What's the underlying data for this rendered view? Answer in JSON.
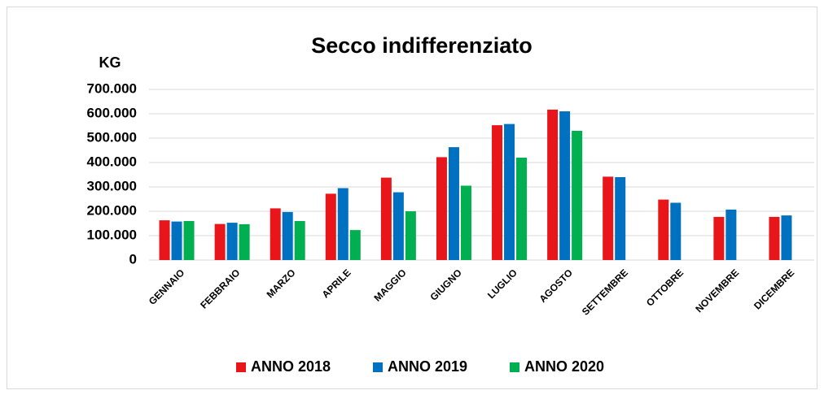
{
  "chart_data": {
    "type": "bar",
    "title": "Secco indifferenziato",
    "y_label": "KG",
    "categories": [
      "GENNAIO",
      "FEBBRAIO",
      "MARZO",
      "APRILE",
      "MAGGIO",
      "GIUGNO",
      "LUGLIO",
      "AGOSTO",
      "SETTEMBRE",
      "OTTOBRE",
      "NOVEMBRE",
      "DICEMBRE"
    ],
    "series": [
      {
        "name": "ANNO 2018",
        "color": "#e8161a",
        "values": [
          163000,
          148000,
          212000,
          272000,
          338000,
          422000,
          553000,
          617000,
          342000,
          248000,
          177000,
          177000
        ]
      },
      {
        "name": "ANNO 2019",
        "color": "#0070c0",
        "values": [
          158000,
          153000,
          197000,
          295000,
          278000,
          463000,
          558000,
          610000,
          340000,
          235000,
          207000,
          183000
        ]
      },
      {
        "name": "ANNO 2020",
        "color": "#00b050",
        "values": [
          160000,
          147000,
          160000,
          123000,
          200000,
          305000,
          420000,
          530000,
          null,
          null,
          null,
          null
        ]
      }
    ],
    "ylim": [
      0,
      700000
    ],
    "yticks": [
      0,
      {
        "value": 100000,
        "label": "100.000"
      },
      {
        "value": 200000,
        "label": "200.000"
      },
      {
        "value": 300000,
        "label": "300.000"
      },
      {
        "value": 400000,
        "label": "400.000"
      },
      {
        "value": 500000,
        "label": "500.000"
      },
      {
        "value": 600000,
        "label": "600.000"
      },
      {
        "value": 700000,
        "label": "700.000"
      }
    ],
    "grid": true,
    "legend": "bottom"
  }
}
